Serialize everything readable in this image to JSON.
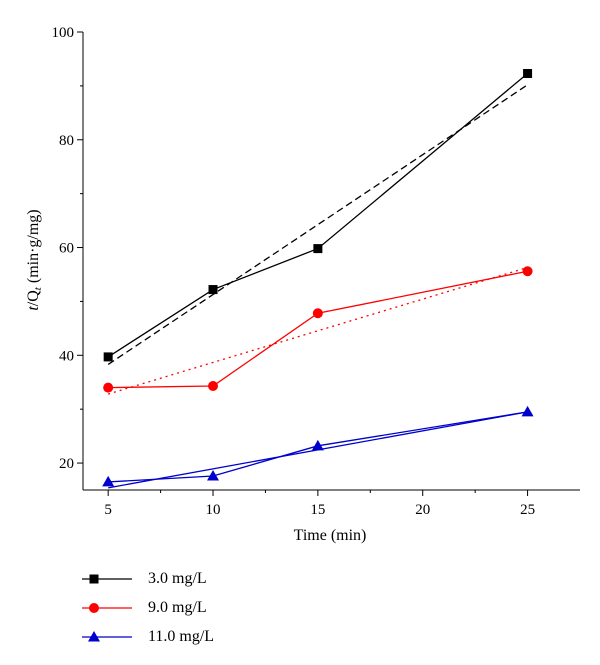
{
  "chart_data": {
    "type": "line",
    "xlabel": "Time (min)",
    "ylabel": {
      "t": "t",
      "slash": "/Q",
      "sub": "t",
      "units": " (min·g/mg)"
    },
    "xlim": [
      3.8,
      27.5
    ],
    "ylim": [
      15,
      100
    ],
    "xticks": [
      5,
      10,
      15,
      20,
      25
    ],
    "xminor": [
      7.5,
      12.5,
      17.5,
      22.5
    ],
    "yticks": [
      20,
      40,
      60,
      80,
      100
    ],
    "yminor": [
      30,
      50,
      70,
      90
    ],
    "grid": false,
    "legend_position": "below",
    "series": [
      {
        "name": "3.0 mg/L",
        "color": "#000000",
        "marker": "square",
        "x": [
          5,
          10,
          15,
          25
        ],
        "y": [
          39.7,
          52.2,
          59.8,
          92.3
        ],
        "fit": {
          "style": "dashed",
          "x": [
            5,
            25
          ],
          "y": [
            38.3,
            90.2
          ]
        }
      },
      {
        "name": "9.0 mg/L",
        "color": "#ff0000",
        "marker": "circle",
        "x": [
          5,
          10,
          15,
          25
        ],
        "y": [
          34.0,
          34.3,
          47.8,
          55.6
        ],
        "fit": {
          "style": "dotted",
          "x": [
            5,
            25
          ],
          "y": [
            32.8,
            56.3
          ]
        }
      },
      {
        "name": "11.0 mg/L",
        "color": "#0000cc",
        "marker": "triangle",
        "x": [
          5,
          10,
          15,
          25
        ],
        "y": [
          16.5,
          17.6,
          23.2,
          29.5
        ],
        "fit": {
          "style": "solid",
          "x": [
            5,
            25
          ],
          "y": [
            15.4,
            29.5
          ]
        }
      }
    ]
  }
}
